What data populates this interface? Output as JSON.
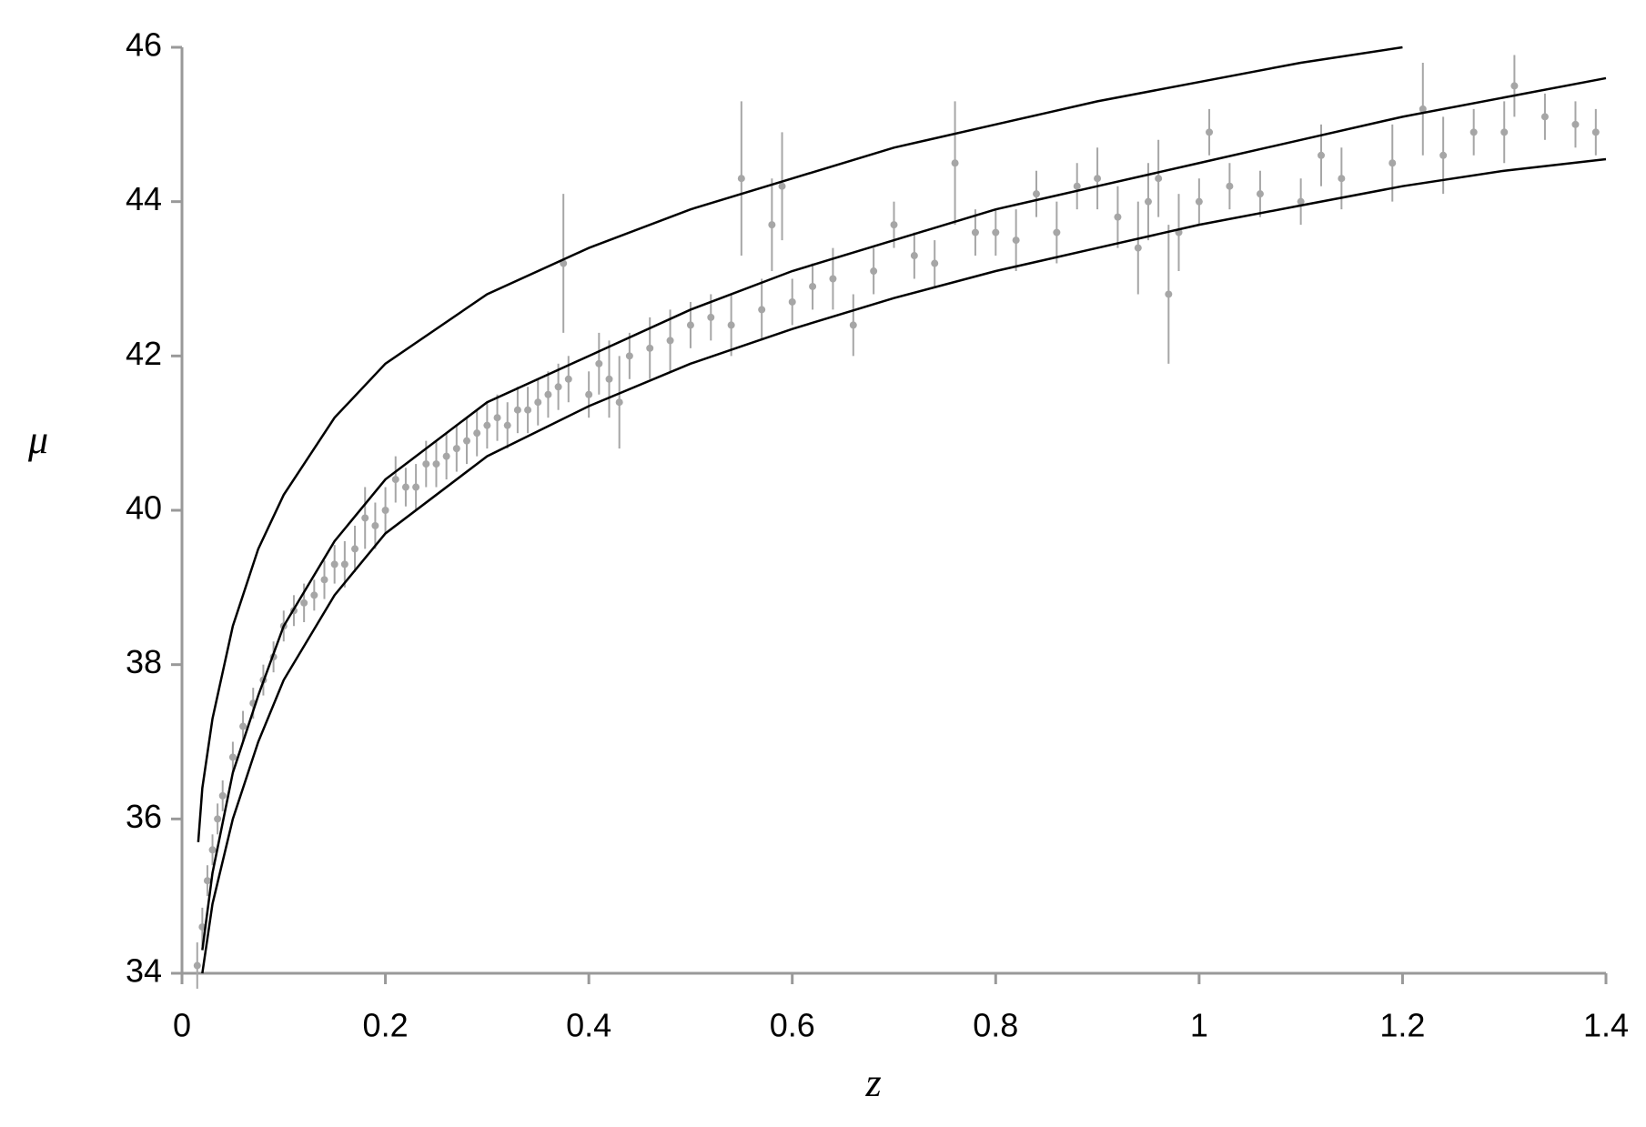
{
  "chart_data": {
    "type": "scatter",
    "xlabel": "z",
    "ylabel": "μ",
    "xlim": [
      0,
      1.4
    ],
    "ylim": [
      34,
      46
    ],
    "xticks": [
      0,
      0.2,
      0.4,
      0.6,
      0.8,
      1,
      1.2,
      1.4
    ],
    "yticks": [
      34,
      36,
      38,
      40,
      42,
      44,
      46
    ],
    "grid": false,
    "points": {
      "color": "#a6a6a6",
      "x": [
        0.015,
        0.02,
        0.025,
        0.03,
        0.035,
        0.04,
        0.05,
        0.06,
        0.07,
        0.08,
        0.09,
        0.1,
        0.11,
        0.12,
        0.13,
        0.14,
        0.15,
        0.16,
        0.17,
        0.18,
        0.19,
        0.2,
        0.21,
        0.22,
        0.23,
        0.24,
        0.25,
        0.26,
        0.27,
        0.28,
        0.29,
        0.3,
        0.31,
        0.32,
        0.33,
        0.34,
        0.35,
        0.36,
        0.37,
        0.375,
        0.38,
        0.4,
        0.41,
        0.42,
        0.43,
        0.44,
        0.46,
        0.48,
        0.5,
        0.52,
        0.54,
        0.55,
        0.57,
        0.58,
        0.59,
        0.6,
        0.62,
        0.64,
        0.66,
        0.68,
        0.7,
        0.72,
        0.74,
        0.76,
        0.78,
        0.8,
        0.82,
        0.84,
        0.86,
        0.88,
        0.9,
        0.92,
        0.94,
        0.95,
        0.96,
        0.97,
        0.98,
        1.0,
        1.01,
        1.03,
        1.06,
        1.1,
        1.12,
        1.14,
        1.19,
        1.22,
        1.24,
        1.27,
        1.3,
        1.31,
        1.34,
        1.37,
        1.39
      ],
      "values": [
        34.1,
        34.6,
        35.2,
        35.6,
        36.0,
        36.3,
        36.8,
        37.2,
        37.5,
        37.8,
        38.1,
        38.5,
        38.7,
        38.8,
        38.9,
        39.1,
        39.3,
        39.3,
        39.5,
        39.9,
        39.8,
        40.0,
        40.4,
        40.3,
        40.3,
        40.6,
        40.6,
        40.7,
        40.8,
        40.9,
        41.0,
        41.1,
        41.2,
        41.1,
        41.3,
        41.3,
        41.4,
        41.5,
        41.6,
        43.2,
        41.7,
        41.5,
        41.9,
        41.7,
        41.4,
        42.0,
        42.1,
        42.2,
        42.4,
        42.5,
        42.4,
        44.3,
        42.6,
        43.7,
        44.2,
        42.7,
        42.9,
        43.0,
        42.4,
        43.1,
        43.7,
        43.3,
        43.2,
        44.5,
        43.6,
        43.6,
        43.5,
        44.1,
        43.6,
        44.2,
        44.3,
        43.8,
        43.4,
        44.0,
        44.3,
        42.8,
        43.6,
        44.0,
        44.9,
        44.2,
        44.1,
        44.0,
        44.6,
        44.3,
        44.5,
        45.2,
        44.6,
        44.9,
        44.9,
        45.5,
        45.1,
        45.0,
        44.9
      ],
      "errors": [
        0.3,
        0.25,
        0.2,
        0.2,
        0.2,
        0.2,
        0.2,
        0.2,
        0.2,
        0.2,
        0.2,
        0.2,
        0.2,
        0.25,
        0.2,
        0.25,
        0.25,
        0.3,
        0.3,
        0.4,
        0.3,
        0.3,
        0.3,
        0.25,
        0.3,
        0.3,
        0.3,
        0.3,
        0.3,
        0.3,
        0.3,
        0.3,
        0.3,
        0.3,
        0.3,
        0.3,
        0.3,
        0.3,
        0.3,
        0.9,
        0.3,
        0.3,
        0.4,
        0.5,
        0.6,
        0.3,
        0.4,
        0.4,
        0.3,
        0.3,
        0.4,
        1.0,
        0.4,
        0.6,
        0.7,
        0.3,
        0.3,
        0.4,
        0.4,
        0.3,
        0.3,
        0.3,
        0.3,
        0.8,
        0.3,
        0.3,
        0.4,
        0.3,
        0.4,
        0.3,
        0.4,
        0.4,
        0.6,
        0.5,
        0.5,
        0.9,
        0.5,
        0.3,
        0.3,
        0.3,
        0.3,
        0.3,
        0.4,
        0.4,
        0.5,
        0.6,
        0.5,
        0.3,
        0.4,
        0.4,
        0.3,
        0.3,
        0.3
      ]
    },
    "curves": [
      {
        "color": "#000000",
        "x": [
          0.016,
          0.02,
          0.03,
          0.05,
          0.075,
          0.1,
          0.15,
          0.2,
          0.3,
          0.4,
          0.5,
          0.6,
          0.7,
          0.8,
          0.9,
          1.0,
          1.1,
          1.2
        ],
        "values": [
          35.7,
          36.4,
          37.3,
          38.5,
          39.5,
          40.2,
          41.2,
          41.9,
          42.8,
          43.4,
          43.9,
          44.3,
          44.7,
          45.0,
          45.3,
          45.55,
          45.8,
          46.0
        ]
      },
      {
        "color": "#000000",
        "x": [
          0.02,
          0.03,
          0.05,
          0.075,
          0.1,
          0.15,
          0.2,
          0.3,
          0.4,
          0.5,
          0.6,
          0.7,
          0.8,
          0.9,
          1.0,
          1.1,
          1.2,
          1.3,
          1.4
        ],
        "values": [
          34.3,
          35.3,
          36.6,
          37.6,
          38.5,
          39.6,
          40.4,
          41.4,
          42.0,
          42.6,
          43.1,
          43.5,
          43.9,
          44.2,
          44.5,
          44.8,
          45.1,
          45.35,
          45.6
        ]
      },
      {
        "color": "#000000",
        "x": [
          0.02,
          0.03,
          0.05,
          0.075,
          0.1,
          0.15,
          0.2,
          0.3,
          0.4,
          0.5,
          0.6,
          0.7,
          0.8,
          0.9,
          1.0,
          1.1,
          1.2,
          1.3,
          1.4
        ],
        "values": [
          34.0,
          34.9,
          36.0,
          37.0,
          37.8,
          38.9,
          39.7,
          40.7,
          41.35,
          41.9,
          42.35,
          42.75,
          43.1,
          43.4,
          43.7,
          43.95,
          44.2,
          44.4,
          44.55
        ]
      }
    ]
  }
}
